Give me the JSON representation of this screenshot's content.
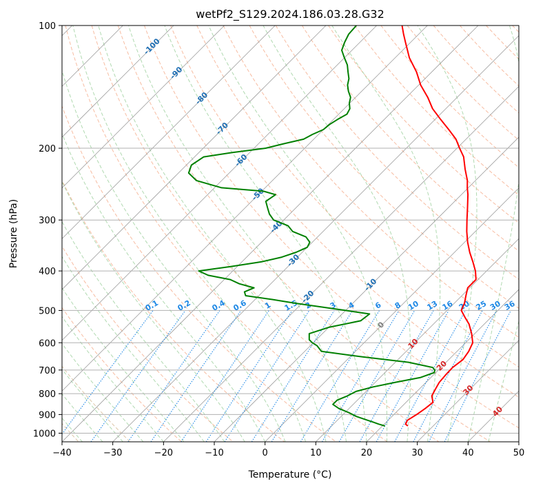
{
  "chart_data": {
    "type": "line",
    "subtype": "skew-t log-p",
    "title": "wetPf2_S129.2024.186.03.28.G32",
    "xlabel": "Temperature (°C)",
    "ylabel": "Pressure (hPa)",
    "xlim": [
      -40,
      50
    ],
    "ylim": [
      1050,
      100
    ],
    "y_scale": "log",
    "grid": true,
    "x_ticks": [
      "−40",
      "−30",
      "−20",
      "−10",
      "0",
      "10",
      "20",
      "30",
      "40",
      "50"
    ],
    "x_tick_values": [
      -40,
      -30,
      -20,
      -10,
      0,
      10,
      20,
      30,
      40,
      50
    ],
    "y_ticks": [
      "100",
      "200",
      "300",
      "400",
      "500",
      "600",
      "700",
      "800",
      "900",
      "1000"
    ],
    "y_tick_values": [
      100,
      200,
      300,
      400,
      500,
      600,
      700,
      800,
      900,
      1000
    ],
    "isotherms": [
      -100,
      -90,
      -80,
      -70,
      -60,
      -50,
      -40,
      -30,
      -20,
      -10,
      0,
      10,
      20,
      30,
      40
    ],
    "isotherm_labels": [
      "-100",
      "-90",
      "-80",
      "-70",
      "-60",
      "-50",
      "-40",
      "-30",
      "-20",
      "-10",
      "0",
      "10",
      "20",
      "30",
      "40"
    ],
    "mixing_ratio_lines": [
      0.1,
      0.2,
      0.4,
      0.6,
      1,
      1.5,
      2,
      3,
      4,
      6,
      8,
      10,
      13,
      16,
      20,
      25,
      30,
      36
    ],
    "mixing_ratio_labels": [
      "0.1",
      "0.2",
      "0.4",
      "0.6",
      "1",
      "1.5",
      "2",
      "3",
      "4",
      "6",
      "8",
      "10",
      "13",
      "16",
      "20",
      "25",
      "30",
      "36"
    ],
    "colors": {
      "temperature": "#ff0000",
      "dewpoint": "#008000",
      "isotherm_cold_label": "#1f6fb4",
      "isotherm_zero_label": "#808080",
      "isotherm_warm_label": "#d62728",
      "mixing_ratio": "#1e88e5",
      "dry_adiabat": "#f4a582",
      "moist_adiabat": "#8fc98f",
      "skew_grid": "#9e9e9e",
      "dry_adiabat_far": "#d2b48c"
    },
    "series": [
      {
        "key": "temperature",
        "p": [
          960,
          950,
          930,
          900,
          870,
          840,
          810,
          780,
          750,
          720,
          690,
          660,
          630,
          600,
          570,
          540,
          520,
          500,
          480,
          460,
          440,
          420,
          400,
          380,
          360,
          340,
          320,
          300,
          280,
          260,
          250,
          240,
          225,
          210,
          200,
          190,
          180,
          170,
          160,
          150,
          140,
          130,
          120,
          110,
          105,
          100
        ],
        "t": [
          25.0,
          24.2,
          23.8,
          24.5,
          25.0,
          25.3,
          23.8,
          23.2,
          22.6,
          22.4,
          22.3,
          22.8,
          22.3,
          21.4,
          19.4,
          17.0,
          14.9,
          12.8,
          12.0,
          10.8,
          9.6,
          9.6,
          7.8,
          5.5,
          3.0,
          0.6,
          -1.7,
          -3.9,
          -6.2,
          -8.7,
          -10.2,
          -11.6,
          -14.3,
          -17.0,
          -19.5,
          -22.0,
          -25.3,
          -28.9,
          -32.6,
          -35.8,
          -39.6,
          -43.0,
          -47.2,
          -51.0,
          -53.0,
          -55.0
        ]
      },
      {
        "key": "dewpoint",
        "p": [
          960,
          950,
          940,
          930,
          910,
          890,
          870,
          850,
          830,
          810,
          790,
          770,
          750,
          730,
          710,
          700,
          690,
          670,
          650,
          630,
          610,
          600,
          590,
          570,
          550,
          530,
          510,
          500,
          480,
          470,
          460,
          450,
          440,
          430,
          420,
          410,
          400,
          390,
          380,
          370,
          360,
          350,
          340,
          330,
          320,
          310,
          300,
          290,
          280,
          270,
          260,
          255,
          250,
          240,
          230,
          220,
          210,
          205,
          200,
          195,
          190,
          185,
          180,
          175,
          170,
          165,
          160,
          155,
          150,
          145,
          140,
          135,
          130,
          125,
          120,
          115,
          110,
          105,
          100
        ],
        "td": [
          20.5,
          18.9,
          17.5,
          16.0,
          13.0,
          10.7,
          8.0,
          6.0,
          6.0,
          7.2,
          8.0,
          10.5,
          14.0,
          18.0,
          19.7,
          19.3,
          18.4,
          12.6,
          2.5,
          -6.7,
          -8.7,
          -10.2,
          -11.4,
          -12.6,
          -10.0,
          -5.0,
          -4.6,
          -10.0,
          -21.4,
          -26.6,
          -32.6,
          -33.6,
          -32.5,
          -36.2,
          -38.8,
          -44.0,
          -46.7,
          -41.2,
          -36.2,
          -33.1,
          -31.2,
          -30.0,
          -30.5,
          -32.3,
          -36.0,
          -38.0,
          -42.0,
          -44.0,
          -45.6,
          -47.2,
          -46.6,
          -49.6,
          -58.6,
          -65.0,
          -68.0,
          -69.0,
          -68.2,
          -63.5,
          -57.7,
          -55.0,
          -52.0,
          -51.2,
          -50.0,
          -49.8,
          -49.2,
          -48.4,
          -48.9,
          -50.1,
          -51.0,
          -52.6,
          -54.0,
          -55.0,
          -56.5,
          -58.0,
          -60.0,
          -62.0,
          -63.0,
          -63.8,
          -64.0
        ]
      }
    ]
  }
}
